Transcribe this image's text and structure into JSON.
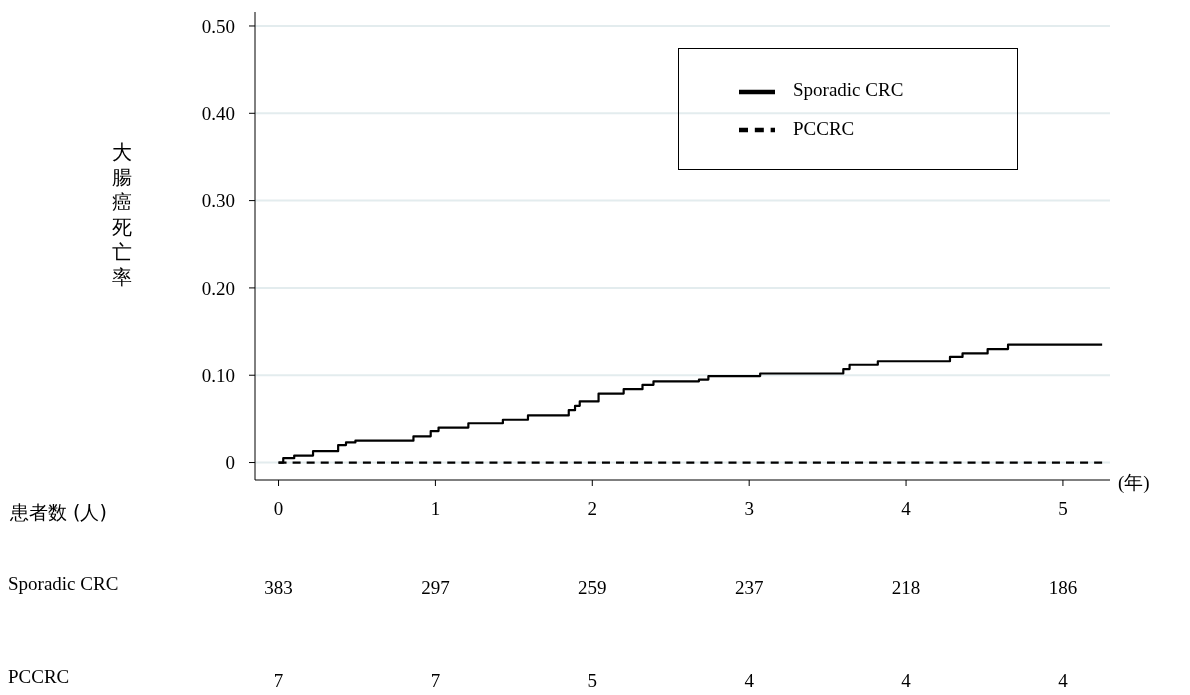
{
  "chart_data": {
    "type": "step",
    "ylabel": "大腸癌死亡率",
    "xlabel": "(年)",
    "xlim": [
      -0.15,
      5.3
    ],
    "xticks": [
      0,
      1,
      2,
      3,
      4,
      5
    ],
    "ylim": [
      -0.02,
      0.516
    ],
    "yticks": [
      0,
      {
        "value": 0.1,
        "label": "0.10"
      },
      {
        "value": 0.2,
        "label": "0.20"
      },
      {
        "value": 0.3,
        "label": "0.30"
      },
      {
        "value": 0.4,
        "label": "0.40"
      },
      {
        "value": 0.5,
        "label": "0.50"
      }
    ],
    "grid": "y",
    "legend": "top right",
    "marker": "none",
    "series": [
      {
        "name": "Sporadic CRC",
        "color": "#000000",
        "line_style": "solid",
        "x": [
          0,
          0.03,
          0.1,
          0.22,
          0.38,
          0.43,
          0.49,
          0.86,
          0.97,
          1.02,
          1.21,
          1.43,
          1.59,
          1.85,
          1.89,
          1.92,
          2.04,
          2.2,
          2.32,
          2.39,
          2.68,
          2.74,
          3.07,
          3.6,
          3.64,
          3.82,
          4.28,
          4.36,
          4.52,
          4.65,
          5.25
        ],
        "values": [
          0,
          0.005,
          0.008,
          0.013,
          0.02,
          0.023,
          0.025,
          0.03,
          0.036,
          0.04,
          0.045,
          0.049,
          0.054,
          0.06,
          0.065,
          0.07,
          0.079,
          0.084,
          0.089,
          0.093,
          0.095,
          0.099,
          0.102,
          0.107,
          0.112,
          0.116,
          0.121,
          0.125,
          0.13,
          0.135,
          0.135
        ]
      },
      {
        "name": "PCCRC",
        "color": "#000000",
        "line_style": "dashed",
        "x": [
          0,
          5.25
        ],
        "values": [
          0,
          0
        ]
      }
    ],
    "annotations": [
      "患者数 (人)",
      "Sporadic CRC",
      "383",
      "297",
      "259",
      "237",
      "218",
      "186",
      "PCCRC",
      "7",
      "7",
      "5",
      "4",
      "4",
      "4"
    ]
  }
}
